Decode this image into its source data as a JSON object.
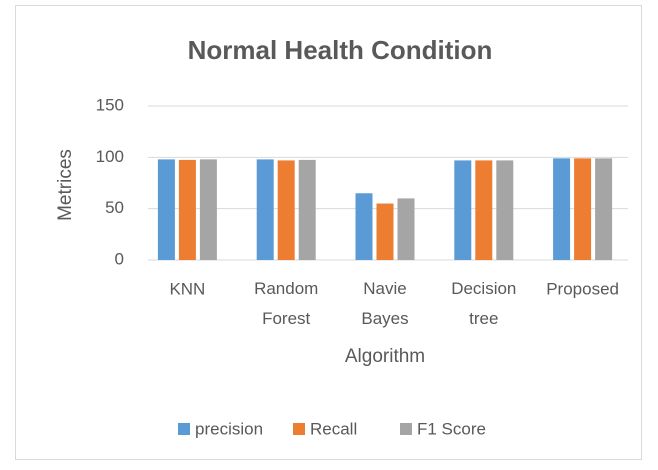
{
  "chart_data": {
    "type": "bar",
    "title": "Normal Health Condition",
    "categories": [
      "KNN",
      "Random Forest",
      "Navie Bayes",
      "Decision tree",
      "Proposed"
    ],
    "series": [
      {
        "name": "precision",
        "color": "#5b9bd5",
        "values": [
          98,
          98,
          65,
          97,
          99
        ]
      },
      {
        "name": "Recall",
        "color": "#ed7d31",
        "values": [
          97.5,
          97,
          55,
          97,
          99
        ]
      },
      {
        "name": "F1 Score",
        "color": "#a5a5a5",
        "values": [
          98,
          97.5,
          60,
          97,
          99
        ]
      }
    ],
    "xlabel": "Algorithm",
    "ylabel": "Metrices",
    "ylim": [
      0,
      150
    ],
    "yticks": [
      0,
      50,
      100,
      150
    ],
    "grid": true,
    "legend": "bottom"
  }
}
